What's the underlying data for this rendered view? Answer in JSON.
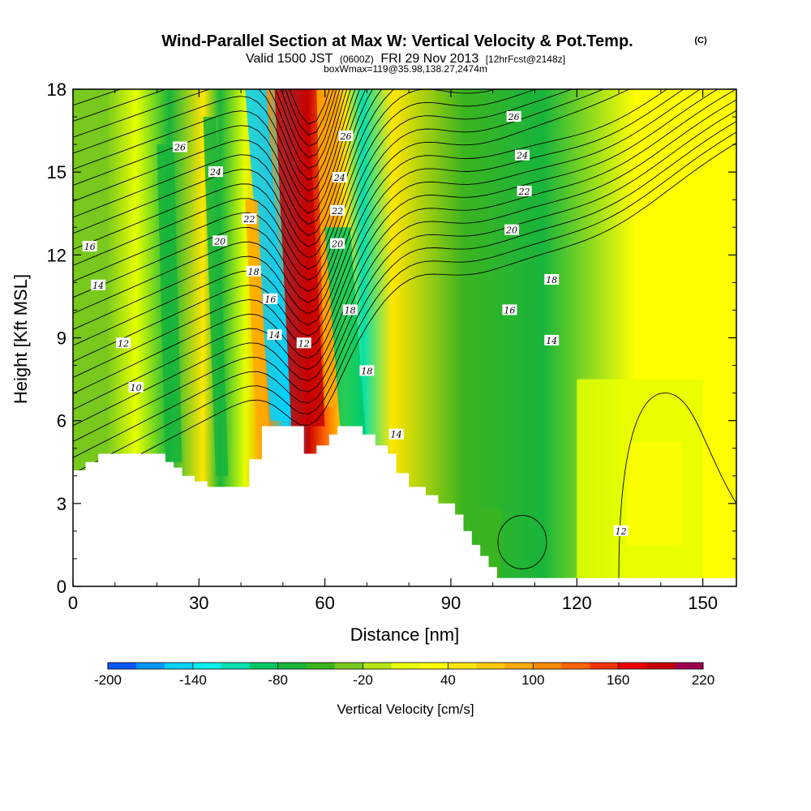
{
  "title": "Wind-Parallel Section at Max W: Vertical Velocity & Pot.Temp.",
  "copyright": "(C)",
  "subtitle_parts": [
    "Valid 1500 JST",
    "(0600Z)",
    "FRI 29 Nov 2013",
    "[12hrFcst@2148z]"
  ],
  "subtitle2": "boxWmax=119@35.98,138.27,2474m",
  "chart_data": {
    "type": "heatmap",
    "xlabel": "Distance [nm]",
    "ylabel": "Height [Kft MSL]",
    "xlim": [
      0,
      158
    ],
    "ylim": [
      0,
      18
    ],
    "xticks": [
      "0",
      "30",
      "60",
      "90",
      "120",
      "150"
    ],
    "yticks": [
      "0",
      "3",
      "6",
      "9",
      "12",
      "15",
      "18"
    ],
    "colorbar": {
      "label": "Vertical Velocity [cm/s]",
      "min": -200,
      "max": 220,
      "step": 20,
      "labels": [
        "-200",
        "-140",
        "-80",
        "-20",
        "40",
        "100",
        "160",
        "220"
      ],
      "colors": [
        "#0000ff",
        "#0a56ff",
        "#0096ff",
        "#00d2ff",
        "#00f0f0",
        "#00e0b0",
        "#00c864",
        "#18b43c",
        "#3cb420",
        "#78c81e",
        "#b4e614",
        "#e6ff00",
        "#ffff00",
        "#ffe600",
        "#ffc800",
        "#ffaa00",
        "#ff8c00",
        "#ff6400",
        "#ff3200",
        "#f00000",
        "#c80000",
        "#a00050",
        "#780078",
        "#50008c",
        "#3c0096"
      ]
    },
    "w_field": [
      {
        "x": 8,
        "w": -20,
        "note": "green band"
      },
      {
        "x": 15,
        "w": 20
      },
      {
        "x": 23,
        "w": -70
      },
      {
        "x": 31,
        "w": 60
      },
      {
        "x": 35,
        "w": -70
      },
      {
        "x": 41,
        "w": 20
      },
      {
        "x": 46,
        "w": 120
      },
      {
        "x": 51,
        "w": -150
      },
      {
        "x": 56,
        "w": 200
      },
      {
        "x": 60,
        "w": 130
      },
      {
        "x": 65,
        "w": 50
      },
      {
        "x": 69,
        "w": -110
      },
      {
        "x": 76,
        "w": 60
      },
      {
        "x": 93,
        "w": -40
      },
      {
        "x": 112,
        "w": -60
      },
      {
        "x": 134,
        "w": 40
      },
      {
        "x": 147,
        "w": 30
      }
    ],
    "theta_contour_labels": [
      {
        "text": "26",
        "x": 25.5,
        "y": 15.9
      },
      {
        "text": "24",
        "x": 34,
        "y": 15.0
      },
      {
        "text": "22",
        "x": 42,
        "y": 13.3
      },
      {
        "text": "20",
        "x": 35,
        "y": 12.5
      },
      {
        "text": "18",
        "x": 43,
        "y": 11.4
      },
      {
        "text": "16",
        "x": 4,
        "y": 12.3
      },
      {
        "text": "16",
        "x": 47,
        "y": 10.4
      },
      {
        "text": "14",
        "x": 6,
        "y": 10.9
      },
      {
        "text": "14",
        "x": 48,
        "y": 9.1
      },
      {
        "text": "12",
        "x": 12,
        "y": 8.8
      },
      {
        "text": "12",
        "x": 55,
        "y": 8.8
      },
      {
        "text": "10",
        "x": 15,
        "y": 7.2
      },
      {
        "text": "26",
        "x": 65,
        "y": 16.3
      },
      {
        "text": "24",
        "x": 63.5,
        "y": 14.8
      },
      {
        "text": "22",
        "x": 63,
        "y": 13.6
      },
      {
        "text": "20",
        "x": 63,
        "y": 12.4
      },
      {
        "text": "18",
        "x": 66,
        "y": 10.0
      },
      {
        "text": "18",
        "x": 70,
        "y": 7.8
      },
      {
        "text": "14",
        "x": 77,
        "y": 5.5
      },
      {
        "text": "26",
        "x": 105,
        "y": 17.0
      },
      {
        "text": "24",
        "x": 107,
        "y": 15.6
      },
      {
        "text": "22",
        "x": 107.5,
        "y": 14.3
      },
      {
        "text": "20",
        "x": 104.5,
        "y": 12.9
      },
      {
        "text": "18",
        "x": 114,
        "y": 11.1
      },
      {
        "text": "16",
        "x": 104,
        "y": 10.0
      },
      {
        "text": "14",
        "x": 114,
        "y": 8.9
      },
      {
        "text": "12",
        "x": 130.5,
        "y": 2.0
      }
    ],
    "terrain": [
      [
        0,
        4.2
      ],
      [
        3,
        4.2
      ],
      [
        3,
        4.5
      ],
      [
        6,
        4.5
      ],
      [
        6,
        4.8
      ],
      [
        22,
        4.8
      ],
      [
        22,
        4.5
      ],
      [
        24,
        4.5
      ],
      [
        24,
        4.3
      ],
      [
        26,
        4.3
      ],
      [
        26,
        4.0
      ],
      [
        29,
        4.0
      ],
      [
        29,
        3.8
      ],
      [
        32,
        3.8
      ],
      [
        32,
        3.6
      ],
      [
        42,
        3.6
      ],
      [
        42,
        4.6
      ],
      [
        45,
        4.6
      ],
      [
        45,
        5.8
      ],
      [
        55,
        5.8
      ],
      [
        55,
        4.8
      ],
      [
        58,
        4.8
      ],
      [
        58,
        5.1
      ],
      [
        61,
        5.1
      ],
      [
        61,
        5.5
      ],
      [
        63,
        5.5
      ],
      [
        63,
        5.8
      ],
      [
        69,
        5.8
      ],
      [
        69,
        5.5
      ],
      [
        72,
        5.5
      ],
      [
        72,
        5.1
      ],
      [
        75,
        5.1
      ],
      [
        75,
        4.8
      ],
      [
        77,
        4.8
      ],
      [
        77,
        4.1
      ],
      [
        80,
        4.1
      ],
      [
        80,
        3.6
      ],
      [
        84,
        3.6
      ],
      [
        84,
        3.3
      ],
      [
        87,
        3.3
      ],
      [
        87,
        3.0
      ],
      [
        91,
        3.0
      ],
      [
        91,
        2.6
      ],
      [
        93,
        2.6
      ],
      [
        93,
        2.0
      ],
      [
        95,
        2.0
      ],
      [
        95,
        1.5
      ],
      [
        97,
        1.5
      ],
      [
        97,
        1.1
      ],
      [
        99,
        1.1
      ],
      [
        99,
        0.7
      ],
      [
        101,
        0.7
      ],
      [
        101,
        0.3
      ],
      [
        158,
        0.3
      ],
      [
        158,
        0
      ],
      [
        0,
        0
      ]
    ]
  }
}
